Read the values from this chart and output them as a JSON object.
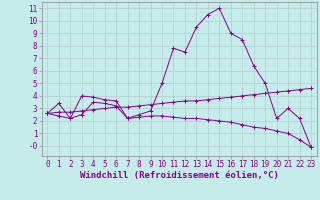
{
  "xlabel": "Windchill (Refroidissement éolien,°C)",
  "background_color": "#c5eceb",
  "grid_color": "#b0cece",
  "line_color": "#880088",
  "xlim": [
    -0.5,
    23.5
  ],
  "ylim": [
    -0.8,
    11.5
  ],
  "xticks": [
    0,
    1,
    2,
    3,
    4,
    5,
    6,
    7,
    8,
    9,
    10,
    11,
    12,
    13,
    14,
    15,
    16,
    17,
    18,
    19,
    20,
    21,
    22,
    23
  ],
  "yticks": [
    0,
    1,
    2,
    3,
    4,
    5,
    6,
    7,
    8,
    9,
    10,
    11
  ],
  "ytick_labels": [
    "-0",
    "1",
    "2",
    "3",
    "4",
    "5",
    "6",
    "7",
    "8",
    "9",
    "10",
    "11"
  ],
  "series1_x": [
    0,
    1,
    2,
    3,
    4,
    5,
    6,
    7,
    8,
    9,
    10,
    11,
    12,
    13,
    14,
    15,
    16,
    17,
    18,
    19,
    20,
    21,
    22,
    23
  ],
  "series1_y": [
    2.6,
    3.4,
    2.2,
    4.0,
    3.9,
    3.7,
    3.6,
    2.2,
    2.5,
    2.8,
    5.0,
    7.8,
    7.5,
    9.5,
    10.5,
    11.0,
    9.0,
    8.5,
    6.4,
    5.0,
    2.2,
    3.0,
    2.2,
    -0.1
  ],
  "series2_x": [
    0,
    1,
    2,
    3,
    4,
    5,
    6,
    7,
    8,
    9,
    10,
    11,
    12,
    13,
    14,
    15,
    16,
    17,
    18,
    19,
    20,
    21,
    22,
    23
  ],
  "series2_y": [
    2.6,
    2.7,
    2.7,
    2.8,
    2.9,
    3.0,
    3.1,
    3.1,
    3.2,
    3.3,
    3.4,
    3.5,
    3.6,
    3.6,
    3.7,
    3.8,
    3.9,
    4.0,
    4.1,
    4.2,
    4.3,
    4.4,
    4.5,
    4.6
  ],
  "series3_x": [
    0,
    1,
    2,
    3,
    4,
    5,
    6,
    7,
    8,
    9,
    10,
    11,
    12,
    13,
    14,
    15,
    16,
    17,
    18,
    19,
    20,
    21,
    22,
    23
  ],
  "series3_y": [
    2.6,
    2.4,
    2.2,
    2.5,
    3.5,
    3.4,
    3.2,
    2.2,
    2.3,
    2.4,
    2.4,
    2.3,
    2.2,
    2.2,
    2.1,
    2.0,
    1.9,
    1.7,
    1.5,
    1.4,
    1.2,
    1.0,
    0.5,
    -0.1
  ],
  "xlabel_fontsize": 6.5,
  "tick_fontsize": 5.5
}
